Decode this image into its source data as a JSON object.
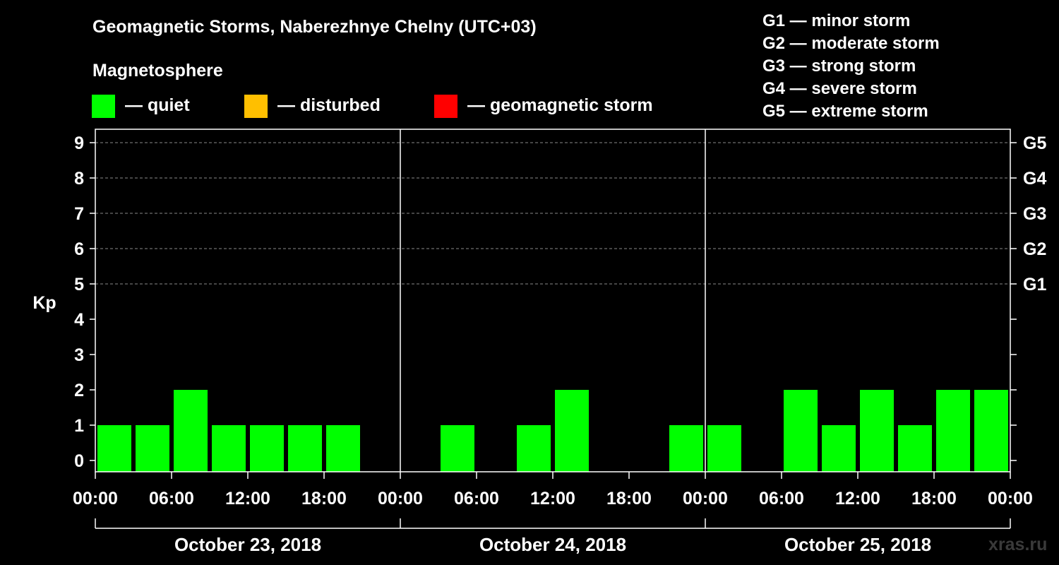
{
  "title": "Geomagnetic Storms, Naberezhnye Chelny (UTC+03)",
  "legend": {
    "heading": "Magnetosphere",
    "items": [
      {
        "label": "— quiet",
        "color": "#00ff00"
      },
      {
        "label": "— disturbed",
        "color": "#ffbf00"
      },
      {
        "label": "— geomagnetic storm",
        "color": "#ff0000"
      }
    ]
  },
  "storm_scale": [
    "G1 — minor storm",
    "G2 — moderate storm",
    "G3 — strong storm",
    "G4 — severe storm",
    "G5 — extreme storm"
  ],
  "watermark": "xras.ru",
  "chart_data": {
    "type": "bar",
    "ylabel": "Kp",
    "ylim": [
      0,
      9
    ],
    "yticks": [
      "0",
      "1",
      "2",
      "3",
      "4",
      "5",
      "6",
      "7",
      "8",
      "9"
    ],
    "right_ticks": [
      {
        "kp": 5,
        "label": "G1"
      },
      {
        "kp": 6,
        "label": "G2"
      },
      {
        "kp": 7,
        "label": "G3"
      },
      {
        "kp": 8,
        "label": "G4"
      },
      {
        "kp": 9,
        "label": "G5"
      }
    ],
    "grid": "dashed horizontal at Kp 5-9",
    "xtick_labels": [
      "00:00",
      "06:00",
      "12:00",
      "18:00",
      "00:00",
      "06:00",
      "12:00",
      "18:00",
      "00:00",
      "06:00",
      "12:00",
      "18:00",
      "00:00"
    ],
    "days": [
      "October 23, 2018",
      "October 24, 2018",
      "October 25, 2018"
    ],
    "interval_hours": 3,
    "bar_color": "#00ff00",
    "values": [
      1,
      1,
      2,
      1,
      1,
      1,
      1,
      0,
      0,
      1,
      0,
      1,
      2,
      0,
      0,
      1,
      1,
      0,
      2,
      1,
      2,
      1,
      2,
      2
    ]
  }
}
